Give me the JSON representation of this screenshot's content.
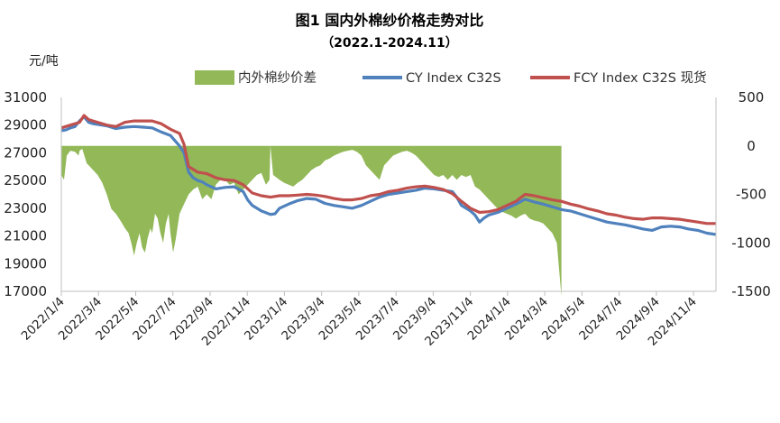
{
  "chart_data": {
    "type": "line",
    "title": "图1 国内外棉纱价格走势对比",
    "subtitle": "（2022.1-2024.11）",
    "ylabel": "元/吨",
    "y_left": {
      "min": 17000,
      "max": 31000,
      "ticks": [
        "31000",
        "29000",
        "27000",
        "25000",
        "23000",
        "21000",
        "19000",
        "17000"
      ]
    },
    "y_right": {
      "min": -1500,
      "max": 500,
      "ticks": [
        "500",
        "0",
        "-500",
        "-1000",
        "-1500"
      ]
    },
    "x_ticks": [
      "2022/1/4",
      "2022/3/4",
      "2022/5/4",
      "2022/7/4",
      "2022/9/4",
      "2022/11/4",
      "2023/1/4",
      "2023/3/4",
      "2023/5/4",
      "2023/7/4",
      "2023/9/4",
      "2023/11/4",
      "2024/1/4",
      "2024/3/4",
      "2024/5/4",
      "2024/7/4",
      "2024/9/4",
      "2024/11/4"
    ],
    "legend_position": "top",
    "series": [
      {
        "name": "内外棉纱价差",
        "kind": "area",
        "axis": "right",
        "color": "#92b858",
        "points": [
          [
            0,
            -300
          ],
          [
            0.3,
            -350
          ],
          [
            0.6,
            -100
          ],
          [
            1,
            -50
          ],
          [
            1.5,
            -60
          ],
          [
            1.9,
            -100
          ],
          [
            2,
            -50
          ],
          [
            2.3,
            -30
          ],
          [
            2.8,
            -180
          ],
          [
            3,
            -200
          ],
          [
            3.5,
            -250
          ],
          [
            4,
            -300
          ],
          [
            4.5,
            -380
          ],
          [
            5,
            -500
          ],
          [
            5.5,
            -650
          ],
          [
            6,
            -700
          ],
          [
            6.5,
            -770
          ],
          [
            7,
            -850
          ],
          [
            7.4,
            -900
          ],
          [
            7.7,
            -1000
          ],
          [
            8,
            -1130
          ],
          [
            8.3,
            -1000
          ],
          [
            8.6,
            -900
          ],
          [
            8.9,
            -1050
          ],
          [
            9.2,
            -1100
          ],
          [
            9.5,
            -950
          ],
          [
            9.8,
            -850
          ],
          [
            10,
            -900
          ],
          [
            10.3,
            -700
          ],
          [
            10.6,
            -750
          ],
          [
            10.9,
            -900
          ],
          [
            11.2,
            -1000
          ],
          [
            11.5,
            -800
          ],
          [
            11.8,
            -700
          ],
          [
            12,
            -900
          ],
          [
            12.3,
            -1100
          ],
          [
            12.6,
            -950
          ],
          [
            13,
            -700
          ],
          [
            13.5,
            -600
          ],
          [
            14,
            -500
          ],
          [
            14.5,
            -450
          ],
          [
            15,
            -420
          ],
          [
            15.5,
            -550
          ],
          [
            16,
            -500
          ],
          [
            16.5,
            -550
          ],
          [
            17,
            -400
          ],
          [
            17.5,
            -350
          ],
          [
            18,
            -350
          ],
          [
            18.5,
            -400
          ],
          [
            19,
            -380
          ],
          [
            19.5,
            -500
          ],
          [
            20,
            -450
          ],
          [
            20.5,
            -400
          ],
          [
            21,
            -350
          ],
          [
            21.5,
            -300
          ],
          [
            22,
            -280
          ],
          [
            22.5,
            -400
          ],
          [
            22.9,
            -350
          ],
          [
            23,
            0
          ],
          [
            23.3,
            -300
          ],
          [
            24,
            -350
          ],
          [
            24.5,
            -380
          ],
          [
            25,
            -400
          ],
          [
            25.5,
            -420
          ],
          [
            26,
            -380
          ],
          [
            26.5,
            -350
          ],
          [
            27,
            -300
          ],
          [
            27.5,
            -250
          ],
          [
            28,
            -220
          ],
          [
            28.5,
            -200
          ],
          [
            29,
            -150
          ],
          [
            29.5,
            -130
          ],
          [
            30,
            -100
          ],
          [
            30.5,
            -80
          ],
          [
            31,
            -60
          ],
          [
            31.5,
            -50
          ],
          [
            32,
            -40
          ],
          [
            32.5,
            -60
          ],
          [
            33,
            -100
          ],
          [
            33.5,
            -200
          ],
          [
            34,
            -250
          ],
          [
            34.5,
            -300
          ],
          [
            35,
            -350
          ],
          [
            35.5,
            -200
          ],
          [
            36,
            -150
          ],
          [
            36.5,
            -100
          ],
          [
            37,
            -80
          ],
          [
            37.5,
            -60
          ],
          [
            38,
            -50
          ],
          [
            38.5,
            -70
          ],
          [
            39,
            -100
          ],
          [
            39.5,
            -150
          ],
          [
            40,
            -200
          ],
          [
            40.5,
            -250
          ],
          [
            41,
            -300
          ],
          [
            41.5,
            -320
          ],
          [
            42,
            -300
          ],
          [
            42.5,
            -350
          ],
          [
            43,
            -300
          ],
          [
            43.5,
            -350
          ],
          [
            44,
            -300
          ],
          [
            44.5,
            -320
          ],
          [
            45,
            -300
          ],
          [
            45.5,
            -420
          ],
          [
            46,
            -450
          ],
          [
            46.5,
            -500
          ],
          [
            47,
            -550
          ],
          [
            47.5,
            -600
          ],
          [
            48,
            -650
          ],
          [
            48.5,
            -680
          ],
          [
            49,
            -700
          ],
          [
            49.5,
            -720
          ],
          [
            50,
            -750
          ],
          [
            50.5,
            -720
          ],
          [
            51,
            -700
          ],
          [
            51.5,
            -750
          ],
          [
            52,
            -770
          ],
          [
            52.5,
            -780
          ],
          [
            53,
            -800
          ],
          [
            53.5,
            -850
          ],
          [
            54,
            -900
          ],
          [
            54.5,
            -1000
          ],
          [
            55,
            -1550
          ]
        ]
      },
      {
        "name": "CY Index C32S",
        "kind": "line",
        "axis": "left",
        "color": "#4f81bd",
        "points": [
          [
            0,
            28600
          ],
          [
            0.5,
            28650
          ],
          [
            1,
            28800
          ],
          [
            1.5,
            28900
          ],
          [
            2,
            29300
          ],
          [
            2.5,
            29600
          ],
          [
            3,
            29200
          ],
          [
            3.5,
            29100
          ],
          [
            4,
            29050
          ],
          [
            5,
            28950
          ],
          [
            6,
            28750
          ],
          [
            7,
            28850
          ],
          [
            8,
            28900
          ],
          [
            9,
            28850
          ],
          [
            10,
            28800
          ],
          [
            11,
            28500
          ],
          [
            12,
            28250
          ],
          [
            13,
            27500
          ],
          [
            13.5,
            27000
          ],
          [
            14,
            25600
          ],
          [
            14.5,
            25200
          ],
          [
            15,
            25000
          ],
          [
            15.5,
            24900
          ],
          [
            16,
            24700
          ],
          [
            17,
            24400
          ],
          [
            18,
            24500
          ],
          [
            19,
            24550
          ],
          [
            20,
            24200
          ],
          [
            20.5,
            23600
          ],
          [
            21,
            23200
          ],
          [
            22,
            22800
          ],
          [
            23,
            22550
          ],
          [
            23.5,
            22600
          ],
          [
            24,
            23000
          ],
          [
            25,
            23300
          ],
          [
            26,
            23550
          ],
          [
            27,
            23700
          ],
          [
            28,
            23650
          ],
          [
            29,
            23350
          ],
          [
            30,
            23200
          ],
          [
            31,
            23100
          ],
          [
            32,
            23000
          ],
          [
            33,
            23200
          ],
          [
            34,
            23500
          ],
          [
            35,
            23800
          ],
          [
            36,
            24000
          ],
          [
            37,
            24100
          ],
          [
            38,
            24200
          ],
          [
            39,
            24300
          ],
          [
            40,
            24450
          ],
          [
            41,
            24400
          ],
          [
            42,
            24300
          ],
          [
            43,
            24200
          ],
          [
            43.5,
            23800
          ],
          [
            44,
            23200
          ],
          [
            45,
            22800
          ],
          [
            45.5,
            22500
          ],
          [
            46,
            22000
          ],
          [
            46.5,
            22300
          ],
          [
            47,
            22500
          ],
          [
            48,
            22700
          ],
          [
            49,
            23000
          ],
          [
            50,
            23300
          ],
          [
            51,
            23650
          ],
          [
            52,
            23450
          ],
          [
            53,
            23300
          ],
          [
            54,
            23100
          ],
          [
            55,
            22900
          ],
          [
            56,
            22800
          ],
          [
            57,
            22600
          ],
          [
            58,
            22400
          ],
          [
            59,
            22200
          ],
          [
            60,
            22000
          ],
          [
            61,
            21900
          ],
          [
            62,
            21800
          ],
          [
            63,
            21650
          ],
          [
            64,
            21500
          ],
          [
            65,
            21400
          ],
          [
            66,
            21650
          ],
          [
            67,
            21700
          ],
          [
            68,
            21650
          ],
          [
            69,
            21500
          ],
          [
            70,
            21400
          ],
          [
            71,
            21200
          ],
          [
            72,
            21100
          ]
        ]
      },
      {
        "name": "FCY Index C32S 现货",
        "kind": "line",
        "axis": "left",
        "color": "#c0504d",
        "points": [
          [
            0,
            28800
          ],
          [
            1,
            29000
          ],
          [
            2,
            29200
          ],
          [
            2.5,
            29700
          ],
          [
            3,
            29400
          ],
          [
            4,
            29200
          ],
          [
            5,
            29000
          ],
          [
            6,
            28900
          ],
          [
            7,
            29200
          ],
          [
            8,
            29300
          ],
          [
            9,
            29300
          ],
          [
            10,
            29300
          ],
          [
            11,
            29100
          ],
          [
            12,
            28700
          ],
          [
            13,
            28400
          ],
          [
            13.5,
            27600
          ],
          [
            14,
            26000
          ],
          [
            15,
            25600
          ],
          [
            16,
            25500
          ],
          [
            17,
            25200
          ],
          [
            18,
            25050
          ],
          [
            19,
            25000
          ],
          [
            20,
            24700
          ],
          [
            21,
            24100
          ],
          [
            22,
            23900
          ],
          [
            23,
            23800
          ],
          [
            24,
            23900
          ],
          [
            25,
            23900
          ],
          [
            26,
            23950
          ],
          [
            27,
            24000
          ],
          [
            28,
            23950
          ],
          [
            29,
            23850
          ],
          [
            30,
            23700
          ],
          [
            31,
            23600
          ],
          [
            32,
            23600
          ],
          [
            33,
            23700
          ],
          [
            34,
            23900
          ],
          [
            35,
            24000
          ],
          [
            36,
            24200
          ],
          [
            37,
            24300
          ],
          [
            38,
            24450
          ],
          [
            39,
            24550
          ],
          [
            40,
            24600
          ],
          [
            41,
            24500
          ],
          [
            42,
            24350
          ],
          [
            43,
            24050
          ],
          [
            44,
            23500
          ],
          [
            45,
            23000
          ],
          [
            46,
            22700
          ],
          [
            47,
            22750
          ],
          [
            48,
            22900
          ],
          [
            49,
            23200
          ],
          [
            50,
            23500
          ],
          [
            51,
            24000
          ],
          [
            52,
            23900
          ],
          [
            53,
            23750
          ],
          [
            54,
            23600
          ],
          [
            55,
            23500
          ],
          [
            56,
            23300
          ],
          [
            57,
            23150
          ],
          [
            58,
            22950
          ],
          [
            59,
            22800
          ],
          [
            60,
            22600
          ],
          [
            61,
            22500
          ],
          [
            62,
            22350
          ],
          [
            63,
            22250
          ],
          [
            64,
            22200
          ],
          [
            65,
            22300
          ],
          [
            66,
            22300
          ],
          [
            67,
            22250
          ],
          [
            68,
            22200
          ],
          [
            69,
            22100
          ],
          [
            70,
            22000
          ],
          [
            71,
            21900
          ],
          [
            72,
            21900
          ]
        ]
      }
    ]
  }
}
